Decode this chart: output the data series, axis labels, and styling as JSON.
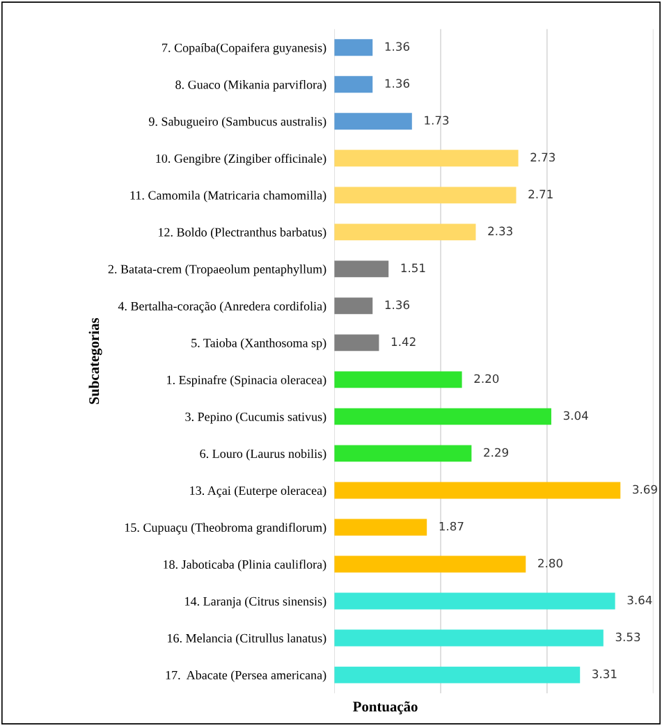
{
  "chart_data": {
    "type": "bar",
    "orientation": "horizontal",
    "xlabel": "Pontuação",
    "ylabel": "Subcategorias",
    "categories": [
      "7. Copaíba(Copaifera guyanesis)",
      "8. Guaco (Mikania parviflora)",
      "9. Sabugueiro (Sambucus australis)",
      "10. Gengibre (Zingiber officinale)",
      "11. Camomila (Matricaria chamomilla)",
      "12. Boldo (Plectranthus barbatus)",
      "2. Batata-crem (Tropaeolum pentaphyllum)",
      "4. Bertalha-coração (Anredera cordifolia)",
      "5. Taioba (Xanthosoma sp)",
      "1. Espinafre (Spinacia oleracea)",
      "3. Pepino (Cucumis sativus)",
      "6. Louro (Laurus nobilis)",
      "13. Açai (Euterpe oleracea)",
      "15. Cupuaçu (Theobroma grandiflorum)",
      "18. Jaboticaba (Plinia cauliflora)",
      "14. Laranja (Citrus sinensis)",
      "16. Melancia (Citrullus lanatus)",
      "17.  Abacate (Persea americana)"
    ],
    "values": [
      1.36,
      1.36,
      1.73,
      2.73,
      2.71,
      2.33,
      1.51,
      1.36,
      1.42,
      2.2,
      3.04,
      2.29,
      3.69,
      1.87,
      2.8,
      3.64,
      3.53,
      3.31
    ],
    "value_labels": [
      "1.36",
      "1.36",
      "1.73",
      "2.73",
      "2.71",
      "2.33",
      "1.51",
      "1.36",
      "1.42",
      "2.20",
      "3.04",
      "2.29",
      "3.69",
      "1.87",
      "2.80",
      "3.64",
      "3.53",
      "3.31"
    ],
    "colors": [
      "#5b9bd5",
      "#5b9bd5",
      "#5b9bd5",
      "#ffd966",
      "#ffd966",
      "#ffd966",
      "#7f7f7f",
      "#7f7f7f",
      "#7f7f7f",
      "#2ee52e",
      "#2ee52e",
      "#2ee52e",
      "#ffc000",
      "#ffc000",
      "#ffc000",
      "#3ae8d8",
      "#3ae8d8",
      "#3ae8d8"
    ],
    "xlim": [
      1,
      4
    ],
    "xticks": [
      {
        "value": 1,
        "label": null
      },
      {
        "value": 2,
        "label": null
      },
      {
        "value": 3,
        "label": null
      },
      {
        "value": 4,
        "label": null
      }
    ],
    "tick_labels": "y",
    "grid": "x",
    "legend": false
  }
}
